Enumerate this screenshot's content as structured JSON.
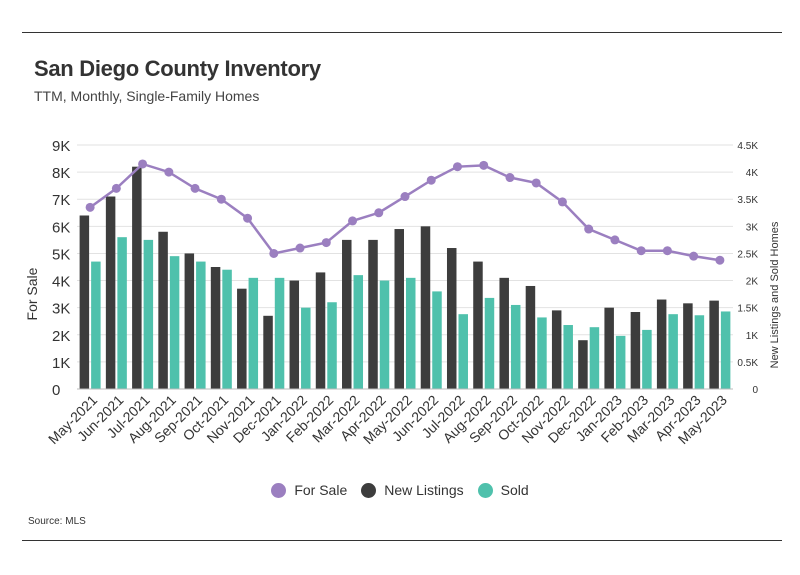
{
  "header": {
    "title": "San Diego County Inventory",
    "subtitle": "TTM, Monthly, Single-Family Homes"
  },
  "footer": {
    "source": "Source:  MLS"
  },
  "legend": [
    {
      "label": "For Sale",
      "color": "#9b7fc0"
    },
    {
      "label": "New Listings",
      "color": "#3d3d3d"
    },
    {
      "label": "Sold",
      "color": "#4fc1ac"
    }
  ],
  "chart_data": {
    "type": "bar",
    "categories": [
      "May-2021",
      "Jun-2021",
      "Jul-2021",
      "Aug-2021",
      "Sep-2021",
      "Oct-2021",
      "Nov-2021",
      "Dec-2021",
      "Jan-2022",
      "Feb-2022",
      "Mar-2022",
      "Apr-2022",
      "May-2022",
      "Jun-2022",
      "Jul-2022",
      "Aug-2022",
      "Sep-2022",
      "Oct-2022",
      "Nov-2022",
      "Dec-2022",
      "Jan-2023",
      "Feb-2023",
      "Mar-2023",
      "Apr-2023",
      "May-2023"
    ],
    "series": [
      {
        "name": "For Sale",
        "type": "line",
        "axis": "left",
        "color": "#9b7fc0",
        "values": [
          6700,
          7400,
          8300,
          8000,
          7400,
          7000,
          6300,
          5000,
          5200,
          5400,
          6200,
          6500,
          7100,
          7700,
          8200,
          8250,
          7800,
          7600,
          6900,
          5900,
          5500,
          5100,
          5100,
          4900,
          4750
        ]
      },
      {
        "name": "New Listings",
        "type": "bar",
        "axis": "right",
        "color": "#3d3d3d",
        "values": [
          3200,
          3550,
          4100,
          2900,
          2500,
          2250,
          1850,
          1350,
          2000,
          2150,
          2750,
          2750,
          2950,
          3000,
          2600,
          2350,
          2050,
          1900,
          1450,
          900,
          1500,
          1420,
          1650,
          1580,
          1630
        ]
      },
      {
        "name": "Sold",
        "type": "bar",
        "axis": "right",
        "color": "#4fc1ac",
        "values": [
          2350,
          2800,
          2750,
          2450,
          2350,
          2200,
          2050,
          2050,
          1500,
          1600,
          2100,
          2000,
          2050,
          1800,
          1380,
          1680,
          1550,
          1320,
          1180,
          1140,
          980,
          1090,
          1380,
          1360,
          1430
        ]
      }
    ],
    "left_axis": {
      "label": "For Sale",
      "ylim": [
        0,
        9000
      ],
      "ticks": [
        "0",
        "1K",
        "2K",
        "3K",
        "4K",
        "5K",
        "6K",
        "7K",
        "8K",
        "9K"
      ]
    },
    "right_axis": {
      "label": "New Listings and Sold Homes",
      "ylim": [
        0,
        4500
      ],
      "ticks": [
        "0",
        "0.5K",
        "1K",
        "1.5K",
        "2K",
        "2.5K",
        "3K",
        "3.5K",
        "4K",
        "4.5K"
      ]
    },
    "grid": true,
    "legend_position": "bottom"
  }
}
